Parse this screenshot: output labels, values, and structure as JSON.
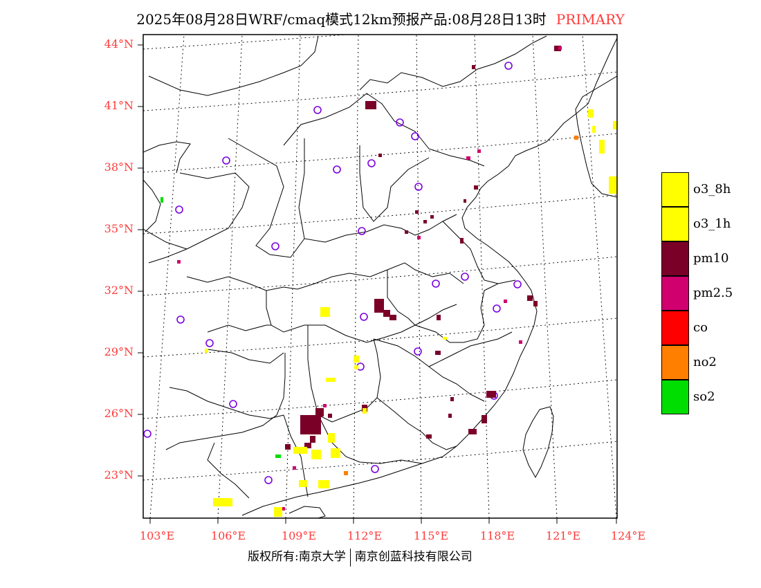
{
  "title": {
    "text": "2025年08月28日WRF/cmaq模式12km预报产品:08月28日13时",
    "product": "PRIMARY"
  },
  "map": {
    "lat_labels": [
      "44°N",
      "41°N",
      "38°N",
      "35°N",
      "32°N",
      "29°N",
      "26°N",
      "23°N"
    ],
    "lon_labels": [
      "103°E",
      "106°E",
      "109°E",
      "112°E",
      "115°E",
      "118°E",
      "121°E",
      "124°E"
    ]
  },
  "legend": [
    {
      "label": "o3_8h",
      "color": "#ffff00"
    },
    {
      "label": "o3_1h",
      "color": "#ffff00"
    },
    {
      "label": "pm10",
      "color": "#7b0028"
    },
    {
      "label": "pm2.5",
      "color": "#d0006f"
    },
    {
      "label": "co",
      "color": "#ff0000"
    },
    {
      "label": "no2",
      "color": "#ff7f00"
    },
    {
      "label": "so2",
      "color": "#00dd00"
    }
  ],
  "footer": {
    "left": "版权所有:南京大学",
    "right": "南京创蓝科技有限公司"
  }
}
